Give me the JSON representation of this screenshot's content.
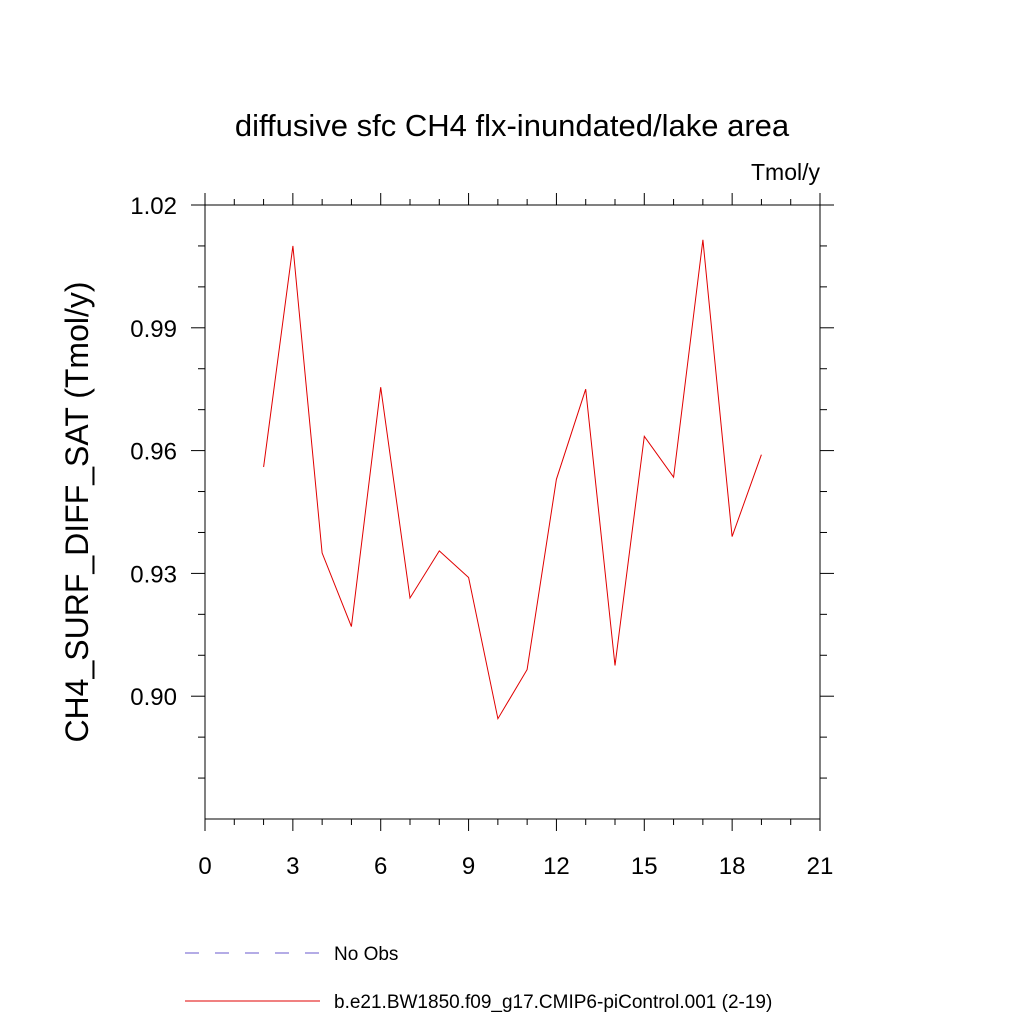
{
  "chart_data": {
    "type": "line",
    "title": "diffusive sfc CH4 flx-inundated/lake area",
    "units_label": "Tmol/y",
    "ylabel": "CH4_SURF_DIFF_SAT  (Tmol/y)",
    "xlabel": "",
    "xlim": [
      0,
      21
    ],
    "ylim": [
      0.87,
      1.02
    ],
    "x_ticks": [
      0,
      3,
      6,
      9,
      12,
      15,
      18,
      21
    ],
    "x_tick_labels": [
      "0",
      "3",
      "6",
      "9",
      "12",
      "15",
      "18",
      "21"
    ],
    "y_ticks": [
      0.9,
      0.93,
      0.96,
      0.99,
      1.02
    ],
    "y_tick_labels": [
      "0.90",
      "0.93",
      "0.96",
      "0.99",
      "1.02"
    ],
    "grid": false,
    "legend_position": "bottom",
    "series": [
      {
        "name": "b.e21.BW1850.f09_g17.CMIP6-piControl.001 (2-19)",
        "color": "#e00000",
        "style": "solid",
        "x": [
          2,
          3,
          4,
          5,
          6,
          7,
          8,
          9,
          10,
          11,
          12,
          13,
          14,
          15,
          16,
          17,
          18,
          19
        ],
        "y": [
          0.956,
          1.01,
          0.935,
          0.917,
          0.9755,
          0.924,
          0.9355,
          0.929,
          0.8945,
          0.9065,
          0.953,
          0.975,
          0.9075,
          0.9635,
          0.9535,
          1.0115,
          0.939,
          0.959
        ]
      }
    ],
    "legend": [
      {
        "label": "No Obs",
        "color": "#6a5acd",
        "style": "dashed"
      },
      {
        "label": "b.e21.BW1850.f09_g17.CMIP6-piControl.001 (2-19)",
        "color": "#e00000",
        "style": "solid"
      }
    ]
  }
}
